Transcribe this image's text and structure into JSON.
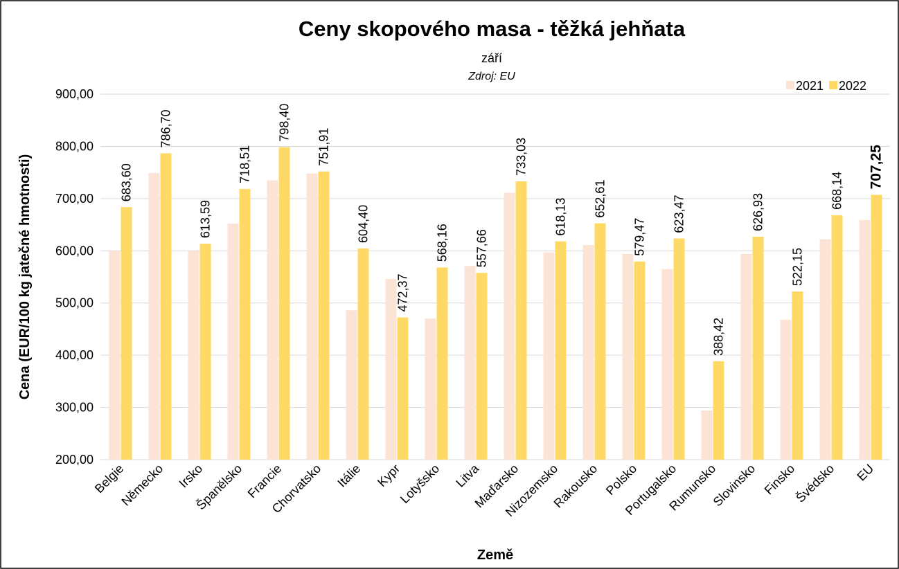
{
  "chart_data": {
    "type": "bar",
    "title": "Ceny skopového masa - těžká jehňata",
    "subtitle": "září",
    "source": "Zdroj: EU",
    "y_label": "Cena (EUR/100 kg jatečné hmotnosti)",
    "x_label": "Země",
    "categories": [
      "Belgie",
      "Německo",
      "Irsko",
      "Španělsko",
      "Francie",
      "Chorvatsko",
      "Itálie",
      "Kypr",
      "Lotyšsko",
      "Litva",
      "Maďarsko",
      "Nizozemsko",
      "Rakousko",
      "Polsko",
      "Portugalsko",
      "Rumunsko",
      "Slovinsko",
      "Finsko",
      "Švédsko",
      "EU"
    ],
    "series": [
      {
        "name": "2021",
        "color": "#fbe3d6",
        "values": [
          600,
          749,
          600,
          652,
          735,
          748,
          486,
          546,
          470,
          571,
          711,
          597,
          611,
          594,
          565,
          294,
          594,
          468,
          622,
          659
        ]
      },
      {
        "name": "2022",
        "color": "#ffd966",
        "values": [
          683.6,
          786.7,
          613.59,
          718.51,
          798.4,
          751.91,
          604.4,
          472.37,
          568.16,
          557.66,
          733.03,
          618.13,
          652.61,
          579.47,
          623.47,
          388.42,
          626.93,
          522.15,
          668.14,
          707.25
        ],
        "value_labels": [
          "683,60",
          "786,70",
          "613,59",
          "718,51",
          "798,40",
          "751,91",
          "604,40",
          "472,37",
          "568,16",
          "557,66",
          "733,03",
          "618,13",
          "652,61",
          "579,47",
          "623,47",
          "388,42",
          "626,93",
          "522,15",
          "668,14",
          "707,25"
        ]
      }
    ],
    "ylim": [
      200,
      900
    ],
    "yticks": [
      {
        "value": 200,
        "label": "200,00"
      },
      {
        "value": 300,
        "label": "300,00"
      },
      {
        "value": 400,
        "label": "400,00"
      },
      {
        "value": 500,
        "label": "500,00"
      },
      {
        "value": 600,
        "label": "600,00"
      },
      {
        "value": 700,
        "label": "700,00"
      },
      {
        "value": 800,
        "label": "800,00"
      },
      {
        "value": 900,
        "label": "900,00"
      }
    ],
    "grid": true,
    "legend": "top-right"
  }
}
